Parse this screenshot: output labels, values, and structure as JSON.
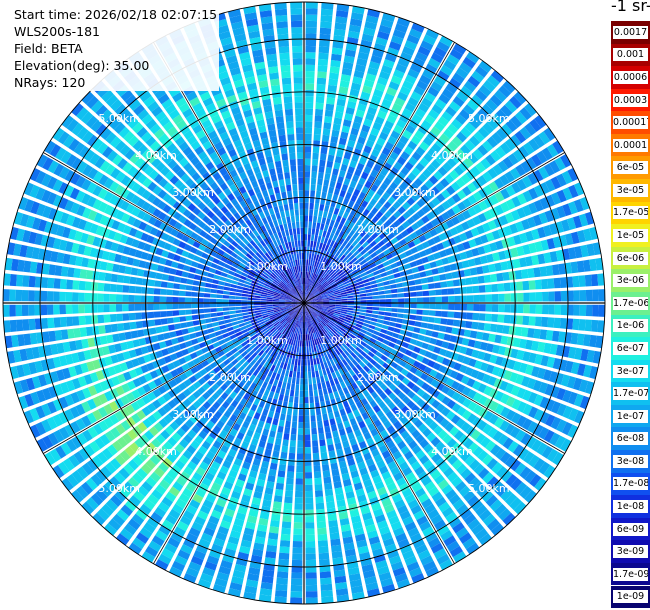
{
  "info": {
    "start_time": "Start time: 2026/02/18 02:07:15",
    "device": "WLS200s-181",
    "field": "Field: BETA",
    "elevation": "Elevation(deg): 35.00",
    "nrays": "NRays: 120"
  },
  "colorbar": {
    "title_fragment": "-1 sr-",
    "labels": [
      "0.0017",
      "0.001",
      "0.0006",
      "0.0003",
      "0.00017",
      "0.0001",
      "6e-05",
      "3e-05",
      "1.7e-05",
      "1e-05",
      "6e-06",
      "3e-06",
      "1.7e-06",
      "1e-06",
      "6e-07",
      "3e-07",
      "1.7e-07",
      "1e-07",
      "6e-08",
      "3e-08",
      "1.7e-08",
      "1e-08",
      "6e-09",
      "3e-09",
      "1.7e-09",
      "1e-09"
    ],
    "colors": [
      "#7a0000",
      "#a80000",
      "#d40000",
      "#ff1a00",
      "#ff4d00",
      "#ff7a00",
      "#ff9a00",
      "#ffb800",
      "#ffd400",
      "#f0f020",
      "#c8f040",
      "#9af06a",
      "#6cf090",
      "#3cf0c0",
      "#20f0e0",
      "#14dcf0",
      "#10c0f0",
      "#10a8f0",
      "#108ef0",
      "#1070f0",
      "#1050f0",
      "#1030e0",
      "#1018c8",
      "#100cb0",
      "#0c0890",
      "#080470"
    ]
  },
  "chart_data": {
    "type": "ppi",
    "title": "",
    "field": "BETA",
    "elevation_deg": 35.0,
    "nrays": 120,
    "range_rings_km": [
      1,
      2,
      3,
      4,
      5
    ],
    "range_ring_labels": [
      "1.00km",
      "2.00km",
      "3.00km",
      "4.00km",
      "5.00km"
    ],
    "max_range_km": 5.7,
    "azimuth_spokes_deg": [
      0,
      30,
      60,
      90,
      120,
      150,
      180,
      210,
      240,
      270,
      300,
      330
    ],
    "color_scale": "log",
    "color_range": [
      1e-09,
      0.0017
    ],
    "colorbar_units_fragment": "-1 sr-",
    "dominant_value_range": [
      3e-08,
      1e-06
    ],
    "features": [
      {
        "description": "enhanced ring",
        "range_km": [
          3.6,
          4.6
        ],
        "peak_value": 6e-07
      },
      {
        "description": "strong patch",
        "azimuth_deg": 230,
        "range_km": 4.3,
        "peak_value": 1e-06
      },
      {
        "description": "weak core",
        "range_km": [
          0,
          1.5
        ],
        "peak_value": 1e-08
      }
    ]
  }
}
